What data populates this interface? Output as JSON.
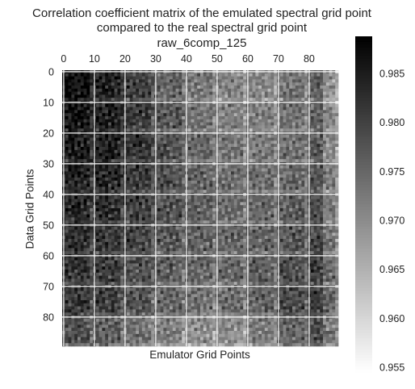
{
  "chart_data": {
    "type": "heatmap",
    "title": "Correlation coefficient matrix of the emulated spectral grid point\ncompared to the real spectral grid point\nraw_6comp_125",
    "title_lines": [
      "Correlation coefficient matrix of the emulated spectral grid point",
      "compared to the real spectral grid point",
      "raw_6comp_125"
    ],
    "xlabel": "Emulator Grid Points",
    "ylabel": "Data Grid Points",
    "x_axis_position": "top",
    "x_ticks": [
      "0",
      "10",
      "20",
      "30",
      "40",
      "50",
      "60",
      "70",
      "80"
    ],
    "y_ticks": [
      "0",
      "10",
      "20",
      "30",
      "40",
      "50",
      "60",
      "70",
      "80"
    ],
    "x_range": [
      0,
      89
    ],
    "y_range": [
      0,
      89
    ],
    "grid": true,
    "colormap": "gray_r",
    "value_range": [
      0.9545,
      0.9888
    ],
    "colorbar": {
      "placement": "right",
      "ticks": [
        "0.955",
        "0.960",
        "0.965",
        "0.970",
        "0.975",
        "0.980",
        "0.985"
      ]
    }
  }
}
